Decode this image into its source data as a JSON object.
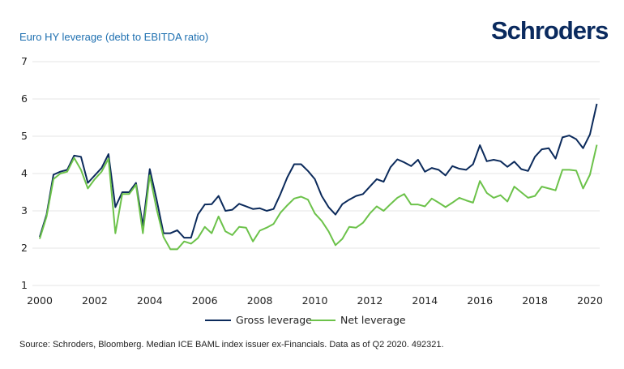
{
  "header": {
    "logo": "Schroders",
    "title": "Euro HY leverage (debt to EBITDA ratio)"
  },
  "footer": {
    "source": "Source: Schroders, Bloomberg. Median ICE BAML index issuer ex-Financials. Data as of Q2 2020. 492321."
  },
  "chart_data": {
    "type": "line",
    "title": "Euro HY leverage (debt to EBITDA ratio)",
    "xlabel": "",
    "ylabel": "",
    "x_start": 2000,
    "x_step": 0.25,
    "xlim": [
      2000,
      2020.25
    ],
    "ylim": [
      1,
      7
    ],
    "x_ticks": [
      "2000",
      "2002",
      "2004",
      "2006",
      "2008",
      "2010",
      "2012",
      "2014",
      "2016",
      "2018",
      "2020"
    ],
    "y_ticks": [
      "1",
      "2",
      "3",
      "4",
      "5",
      "6",
      "7"
    ],
    "grid": "horizontal",
    "legend_position": "bottom-center",
    "series": [
      {
        "name": "Gross leverage",
        "color": "#0b2a5b",
        "values": [
          2.3,
          2.9,
          3.97,
          4.05,
          4.1,
          4.48,
          4.45,
          3.75,
          3.95,
          4.15,
          4.52,
          3.1,
          3.5,
          3.5,
          3.75,
          2.6,
          4.12,
          3.3,
          2.4,
          2.4,
          2.48,
          2.28,
          2.28,
          2.9,
          3.17,
          3.18,
          3.4,
          3.0,
          3.03,
          3.19,
          3.12,
          3.05,
          3.07,
          3.0,
          3.05,
          3.45,
          3.9,
          4.25,
          4.25,
          4.07,
          3.85,
          3.4,
          3.1,
          2.9,
          3.18,
          3.3,
          3.4,
          3.45,
          3.65,
          3.85,
          3.78,
          4.17,
          4.38,
          4.3,
          4.2,
          4.37,
          4.05,
          4.15,
          4.1,
          3.95,
          4.2,
          4.13,
          4.1,
          4.25,
          4.76,
          4.33,
          4.37,
          4.33,
          4.18,
          4.32,
          4.12,
          4.07,
          4.45,
          4.65,
          4.68,
          4.4,
          4.97,
          5.02,
          4.92,
          4.68,
          5.05,
          5.87
        ]
      },
      {
        "name": "Net leverage",
        "color": "#6cc24a",
        "values": [
          2.25,
          2.85,
          3.85,
          4.0,
          4.05,
          4.42,
          4.1,
          3.6,
          3.85,
          4.05,
          4.4,
          2.4,
          3.45,
          3.45,
          3.7,
          2.4,
          3.95,
          3.05,
          2.3,
          1.97,
          1.97,
          2.18,
          2.12,
          2.27,
          2.57,
          2.4,
          2.85,
          2.45,
          2.35,
          2.57,
          2.55,
          2.18,
          2.47,
          2.55,
          2.65,
          2.95,
          3.15,
          3.33,
          3.38,
          3.3,
          2.93,
          2.73,
          2.45,
          2.08,
          2.25,
          2.57,
          2.55,
          2.68,
          2.93,
          3.12,
          3.0,
          3.18,
          3.35,
          3.45,
          3.17,
          3.17,
          3.12,
          3.33,
          3.22,
          3.1,
          3.22,
          3.35,
          3.28,
          3.22,
          3.8,
          3.48,
          3.35,
          3.42,
          3.25,
          3.65,
          3.5,
          3.35,
          3.4,
          3.65,
          3.6,
          3.55,
          4.1,
          4.1,
          4.08,
          3.6,
          3.97,
          4.77
        ]
      }
    ]
  }
}
